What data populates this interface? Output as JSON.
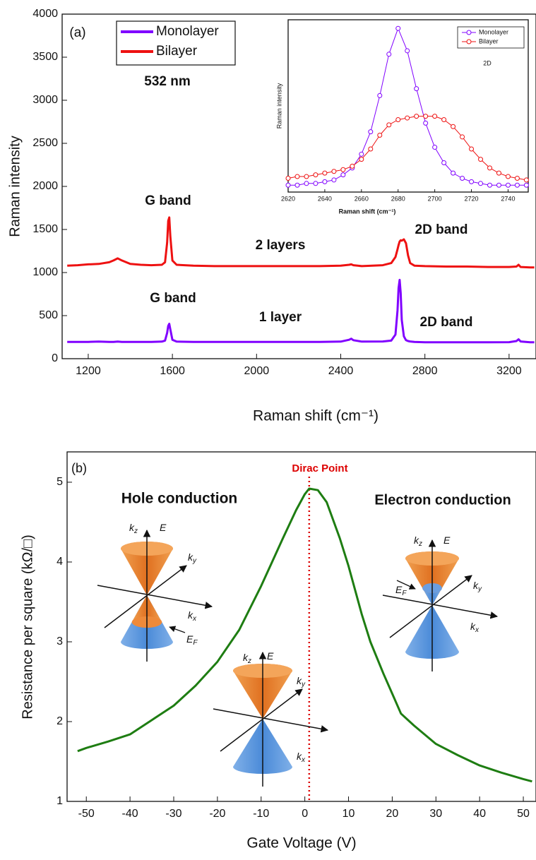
{
  "chart_data": [
    {
      "type": "line",
      "x_label": "Raman shift (cm⁻¹)",
      "y_label": "Raman intensity",
      "xlim": [
        1076,
        3328
      ],
      "ylim": [
        0,
        4000
      ],
      "xticks": [
        1200,
        1600,
        2000,
        2400,
        2800,
        3200
      ],
      "yticks": [
        0,
        500,
        1000,
        1500,
        2000,
        2500,
        3000,
        3500,
        4000
      ],
      "legend": "upper left",
      "x": [
        1100,
        1150,
        1200,
        1250,
        1300,
        1320,
        1340,
        1360,
        1400,
        1450,
        1500,
        1550,
        1565,
        1575,
        1580,
        1585,
        1590,
        1600,
        1620,
        1700,
        1800,
        1900,
        2000,
        2100,
        2200,
        2300,
        2400,
        2440,
        2450,
        2460,
        2500,
        2600,
        2640,
        2660,
        2670,
        2675,
        2680,
        2685,
        2690,
        2700,
        2710,
        2720,
        2730,
        2750,
        2800,
        2900,
        3000,
        3100,
        3200,
        3235,
        3245,
        3255,
        3300,
        3320
      ],
      "series": [
        {
          "name": "Monolayer",
          "color": "#8000ff",
          "values": [
            195,
            195,
            195,
            198,
            195,
            195,
            198,
            195,
            195,
            195,
            195,
            198,
            210,
            300,
            380,
            405,
            340,
            220,
            198,
            195,
            195,
            195,
            195,
            195,
            195,
            195,
            198,
            220,
            232,
            215,
            198,
            200,
            210,
            280,
            560,
            820,
            915,
            760,
            450,
            260,
            215,
            205,
            200,
            195,
            190,
            190,
            190,
            190,
            192,
            205,
            225,
            200,
            190,
            190
          ]
        },
        {
          "name": "Bilayer",
          "color": "#ee1111",
          "values": [
            1080,
            1085,
            1095,
            1100,
            1120,
            1140,
            1165,
            1140,
            1100,
            1090,
            1085,
            1090,
            1120,
            1350,
            1600,
            1640,
            1420,
            1140,
            1090,
            1080,
            1075,
            1075,
            1075,
            1075,
            1075,
            1075,
            1080,
            1090,
            1095,
            1085,
            1075,
            1085,
            1110,
            1180,
            1270,
            1320,
            1360,
            1375,
            1370,
            1385,
            1340,
            1200,
            1110,
            1080,
            1075,
            1070,
            1070,
            1065,
            1065,
            1070,
            1090,
            1065,
            1060,
            1060
          ]
        }
      ],
      "annotations": [
        "(a)",
        "532 nm",
        "G band",
        "2 layers",
        "2D band",
        "G band",
        "1 layer",
        "2D band"
      ]
    },
    {
      "type": "line",
      "x_label": "Raman shift (cm⁻¹)",
      "y_label": "Raman intensity",
      "xlim": [
        2620,
        2751
      ],
      "ylim": [
        0,
        100
      ],
      "xticks": [
        2620,
        2640,
        2660,
        2680,
        2700,
        2720,
        2740
      ],
      "legend": "upper right",
      "markers": true,
      "x": [
        2620,
        2625,
        2630,
        2635,
        2640,
        2645,
        2650,
        2655,
        2660,
        2665,
        2670,
        2675,
        2680,
        2685,
        2690,
        2695,
        2700,
        2705,
        2710,
        2715,
        2720,
        2725,
        2730,
        2735,
        2740,
        2745,
        2750
      ],
      "series": [
        {
          "name": "Monolayer",
          "color": "#8000ff",
          "values": [
            4,
            4,
            5,
            5,
            6,
            7,
            10,
            14,
            22,
            35,
            56,
            80,
            95,
            82,
            60,
            40,
            26,
            17,
            11,
            8,
            6,
            5,
            4,
            4,
            4,
            4,
            4
          ]
        },
        {
          "name": "Bilayer",
          "color": "#ee1111",
          "values": [
            8,
            9,
            9,
            10,
            11,
            12,
            13,
            15,
            19,
            25,
            33,
            39,
            42,
            43,
            44,
            44,
            44,
            42,
            38,
            32,
            25,
            19,
            14,
            11,
            9,
            8,
            7
          ]
        }
      ],
      "annotations": [
        "2D"
      ]
    },
    {
      "type": "line",
      "x_label": "Gate Voltage (V)",
      "y_label": "Resistance per square (kΩ/□)",
      "xlim": [
        -54.4,
        52.9
      ],
      "ylim": [
        1,
        5.38
      ],
      "xticks": [
        -50,
        -40,
        -30,
        -20,
        -10,
        0,
        10,
        20,
        30,
        40,
        50
      ],
      "yticks": [
        1,
        2,
        3,
        4,
        5
      ],
      "dirac_x": 1,
      "dirac_color": "#dd0000",
      "x": [
        -52,
        -50,
        -45,
        -40,
        -35,
        -30,
        -25,
        -20,
        -15,
        -10,
        -5,
        -2,
        0,
        1,
        3,
        5,
        8,
        10,
        13,
        15,
        18,
        20,
        22,
        25,
        30,
        35,
        40,
        45,
        50,
        52
      ],
      "series": [
        {
          "color": "#1e7d12",
          "values": [
            1.63,
            1.67,
            1.75,
            1.84,
            2.02,
            2.2,
            2.45,
            2.75,
            3.15,
            3.7,
            4.3,
            4.65,
            4.85,
            4.92,
            4.9,
            4.75,
            4.3,
            3.95,
            3.35,
            3.0,
            2.6,
            2.35,
            2.1,
            1.95,
            1.72,
            1.58,
            1.45,
            1.36,
            1.28,
            1.25
          ]
        }
      ],
      "annotations": [
        "(b)",
        "Dirac Point",
        "Hole conduction",
        "Electron conduction"
      ],
      "diagrams": [
        {
          "labels": [
            {
              "base": "k",
              "sub": "z"
            },
            {
              "base": "E"
            },
            {
              "base": "k",
              "sub": "y"
            },
            {
              "base": "k",
              "sub": "x"
            },
            {
              "base": "E",
              "sub": "F"
            }
          ]
        },
        {
          "labels": [
            {
              "base": "k",
              "sub": "z"
            },
            {
              "base": "E"
            },
            {
              "base": "k",
              "sub": "y"
            },
            {
              "base": "k",
              "sub": "x"
            },
            {
              "base": "E",
              "sub": "F"
            }
          ]
        },
        {
          "labels": [
            {
              "base": "k",
              "sub": "z"
            },
            {
              "base": "E"
            },
            {
              "base": "k",
              "sub": "y"
            },
            {
              "base": "k",
              "sub": "x"
            }
          ]
        }
      ]
    }
  ]
}
